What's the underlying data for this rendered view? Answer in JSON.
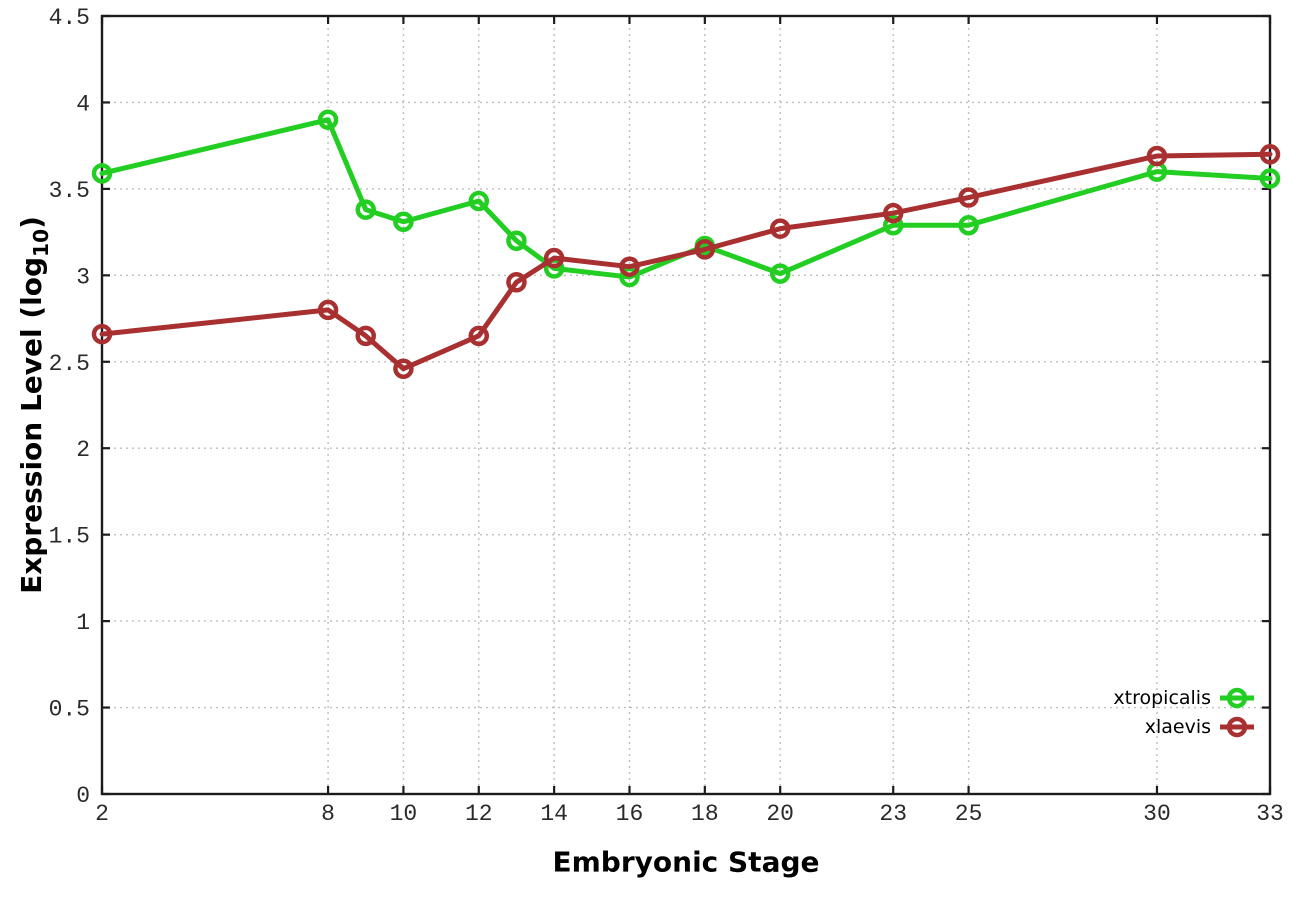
{
  "figure": {
    "background": "#ffffff",
    "border_color": "#1c1c1c",
    "grid_color": "#bfbfbf",
    "tick_label_color": "#2a2a2a"
  },
  "chart_data": {
    "type": "line",
    "title": "",
    "xlabel": "Embryonic Stage",
    "ylabel": "Expression Level (log10)",
    "ylabel_parts": {
      "prefix": "Expression Level (log",
      "sub": "10",
      "suffix": ")"
    },
    "x": [
      2,
      8,
      9,
      10,
      12,
      13,
      14,
      16,
      18,
      20,
      23,
      25,
      30,
      33
    ],
    "series": [
      {
        "name": "xtropicalis",
        "color": "#22CE22",
        "values": [
          3.59,
          3.9,
          3.38,
          3.31,
          3.43,
          3.2,
          3.04,
          2.99,
          3.17,
          3.01,
          3.29,
          3.29,
          3.6,
          3.56
        ]
      },
      {
        "name": "xlaevis",
        "color": "#A93030",
        "values": [
          2.66,
          2.8,
          2.65,
          2.46,
          2.65,
          2.96,
          3.1,
          3.05,
          3.15,
          3.27,
          3.36,
          3.45,
          3.69,
          3.7
        ]
      }
    ],
    "xlim": [
      2,
      33
    ],
    "ylim": [
      0,
      4.5
    ],
    "xticks": [
      "2",
      "8",
      "10",
      "12",
      "14",
      "16",
      "18",
      "20",
      "23",
      "25",
      "30",
      "33"
    ],
    "yticks": [
      "0",
      "0.5",
      "1",
      "1.5",
      "2",
      "2.5",
      "3",
      "3.5",
      "4",
      "4.5"
    ],
    "grid": true,
    "grid_style": "dotted",
    "ticks_mirrored": true,
    "legend_position": "inside-bottom-right",
    "marker": "open-circle"
  }
}
